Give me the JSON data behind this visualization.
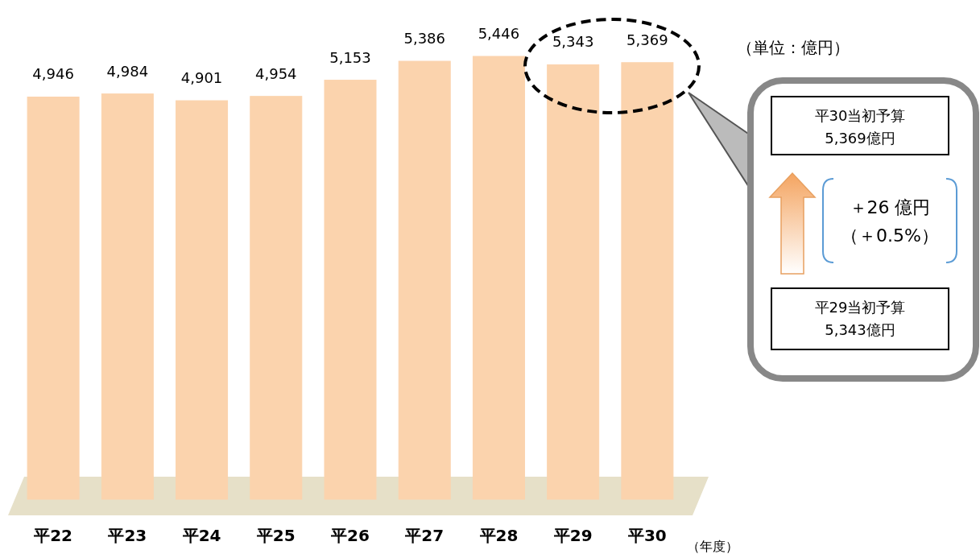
{
  "chart_data": {
    "type": "bar",
    "categories": [
      "平22",
      "平23",
      "平24",
      "平25",
      "平26",
      "平27",
      "平28",
      "平29",
      "平30"
    ],
    "values": [
      4946,
      4984,
      4901,
      4954,
      5153,
      5386,
      5446,
      5343,
      5369
    ],
    "value_labels": [
      "4,946",
      "4,984",
      "4,901",
      "4,954",
      "5,153",
      "5,386",
      "5,446",
      "5,343",
      "5,369"
    ],
    "color": "#fbd3ad",
    "annotations": [
      "（単位：億円）",
      "（年度）",
      "平30当初予算",
      "5,369億円",
      "＋26 億円",
      "（＋0.5%）",
      "平29当初予算",
      "5,343億円"
    ]
  }
}
